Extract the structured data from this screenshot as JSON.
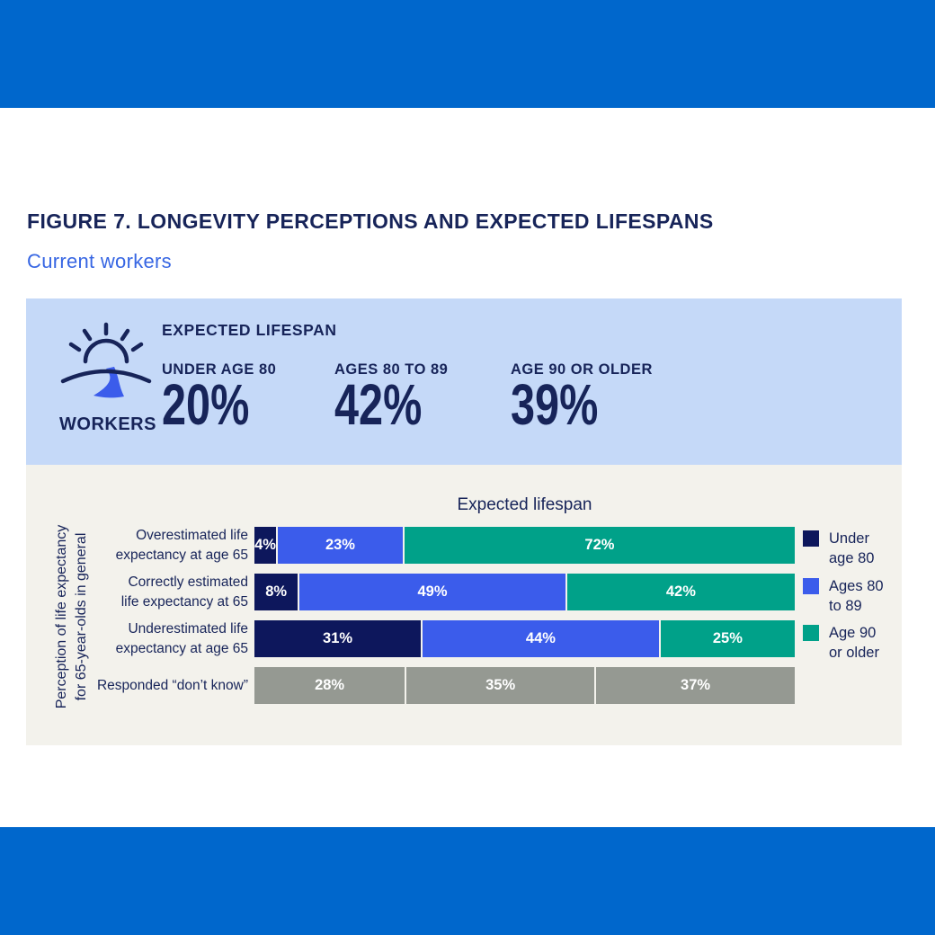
{
  "colors": {
    "banner": "#0067cc",
    "summary_panel_bg": "#c5d9f8",
    "chart_panel_bg": "#f3f2ec",
    "navy_text": "#172459",
    "subtitle_blue": "#3766e3",
    "bar_navy": "#0d175c",
    "bar_blue": "#3b5ceb",
    "bar_teal": "#00a189",
    "bar_gray": "#959992"
  },
  "figure_header": {
    "title": "FIGURE 7. LONGEVITY PERCEPTIONS AND EXPECTED LIFESPANS",
    "subtitle": "Current workers"
  },
  "summary_panel": {
    "icon_name": "sunrise-road-icon",
    "icon_caption": "WORKERS",
    "heading": "EXPECTED LIFESPAN",
    "stats": [
      {
        "label": "UNDER AGE 80",
        "value": "20%"
      },
      {
        "label": "AGES 80 TO 89",
        "value": "42%"
      },
      {
        "label": "AGE 90 OR OLDER",
        "value": "39%"
      }
    ]
  },
  "chart_data": {
    "type": "bar",
    "variant": "horizontal_stacked_100pct",
    "title": "Expected lifespan",
    "y_axis_label": "Perception of life expectancy for 65-year-olds in general",
    "y_axis_label_lines": [
      "Perception of life expectancy",
      "for 65-year-olds in general"
    ],
    "legend_position": "right",
    "categories": [
      "Overestimated life expectancy at age 65",
      "Correctly estimated life expectancy at 65",
      "Underestimated life expectancy at age 65",
      "Responded “don’t know”"
    ],
    "series": [
      {
        "name": "Under age 80",
        "color": "#0d175c",
        "values": [
          4,
          8,
          31,
          28
        ]
      },
      {
        "name": "Ages 80 to 89",
        "color": "#3b5ceb",
        "values": [
          23,
          49,
          44,
          35
        ]
      },
      {
        "name": "Age 90 or older",
        "color": "#00a189",
        "values": [
          72,
          42,
          25,
          37
        ]
      }
    ],
    "dont_know_row_index": 3,
    "dont_know_row_color": "#959992",
    "rows": [
      {
        "label_lines": [
          "Overestimated life",
          "expectancy at age 65"
        ],
        "segments": [
          {
            "pct": 4,
            "color": "#0d175c"
          },
          {
            "pct": 23,
            "color": "#3b5ceb"
          },
          {
            "pct": 72,
            "color": "#00a189"
          }
        ]
      },
      {
        "label_lines": [
          "Correctly estimated",
          "life expectancy at 65"
        ],
        "segments": [
          {
            "pct": 8,
            "color": "#0d175c"
          },
          {
            "pct": 49,
            "color": "#3b5ceb"
          },
          {
            "pct": 42,
            "color": "#00a189"
          }
        ]
      },
      {
        "label_lines": [
          "Underestimated life",
          "expectancy at age 65"
        ],
        "segments": [
          {
            "pct": 31,
            "color": "#0d175c"
          },
          {
            "pct": 44,
            "color": "#3b5ceb"
          },
          {
            "pct": 25,
            "color": "#00a189"
          }
        ]
      },
      {
        "label_lines": [
          "Responded “don’t know”"
        ],
        "segments": [
          {
            "pct": 28,
            "color": "#959992"
          },
          {
            "pct": 35,
            "color": "#959992"
          },
          {
            "pct": 37,
            "color": "#959992"
          }
        ]
      }
    ],
    "legend": [
      {
        "label_lines": [
          "Under",
          "age 80"
        ],
        "color": "#0d175c"
      },
      {
        "label_lines": [
          "Ages 80",
          "to 89"
        ],
        "color": "#3b5ceb"
      },
      {
        "label_lines": [
          "Age 90",
          "or older"
        ],
        "color": "#00a189"
      }
    ]
  }
}
